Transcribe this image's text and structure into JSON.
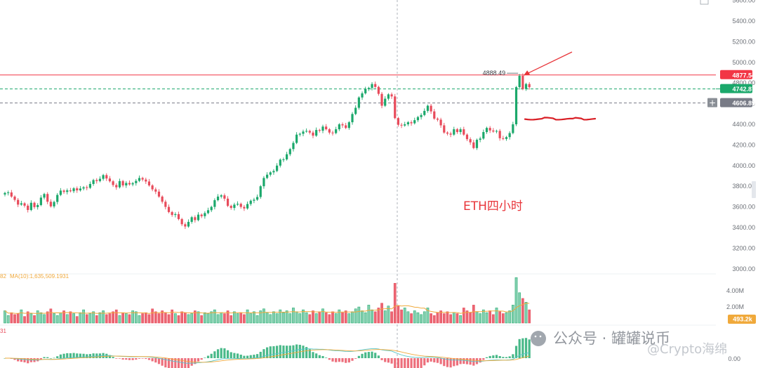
{
  "chart_data": {
    "type": "candlestick",
    "title": "ETH四小时",
    "y_axis": {
      "ticks": [
        "5600.00",
        "5400.00",
        "5200.00",
        "5000.00",
        "4800.00",
        "4600.00",
        "4400.00",
        "4200.00",
        "4000.00",
        "3800.00",
        "3600.00",
        "3400.00",
        "3200.00",
        "3000.00"
      ],
      "range": [
        2900,
        5650
      ]
    },
    "price_levels": [
      {
        "label": "4877.54",
        "value": 4877.54,
        "color": "#f23645",
        "style": "solid"
      },
      {
        "label": "4742.87",
        "value": 4742.87,
        "color": "#1ba86b",
        "style": "dashed"
      },
      {
        "label": "4606.89",
        "value": 4606.89,
        "color": "#787b86",
        "style": "dashed"
      }
    ],
    "high_marker": {
      "label": "4888.49",
      "value": 4888.49
    },
    "marked_support": 4450,
    "price_series": [
      3735,
      3740,
      3700,
      3668,
      3622,
      3635,
      3612,
      3570,
      3640,
      3598,
      3618,
      3690,
      3725,
      3650,
      3605,
      3648,
      3716,
      3758,
      3745,
      3760,
      3752,
      3780,
      3760,
      3778,
      3790,
      3785,
      3822,
      3860,
      3850,
      3872,
      3908,
      3875,
      3848,
      3812,
      3790,
      3850,
      3808,
      3832,
      3818,
      3830,
      3852,
      3880,
      3865,
      3846,
      3808,
      3770,
      3748,
      3700,
      3650,
      3600,
      3550,
      3522,
      3530,
      3482,
      3432,
      3410,
      3455,
      3500,
      3472,
      3525,
      3510,
      3540,
      3568,
      3600,
      3665,
      3700,
      3712,
      3680,
      3610,
      3590,
      3622,
      3630,
      3600,
      3585,
      3628,
      3660,
      3670,
      3696,
      3800,
      3880,
      3912,
      3935,
      3948,
      4000,
      4058,
      4060,
      4110,
      4160,
      4220,
      4300,
      4308,
      4330,
      4336,
      4320,
      4290,
      4345,
      4338,
      4378,
      4352,
      4320,
      4315,
      4352,
      4400,
      4390,
      4365,
      4420,
      4500,
      4560,
      4660,
      4700,
      4740,
      4752,
      4790,
      4762,
      4695,
      4580,
      4648,
      4690,
      4670,
      4460,
      4395,
      4388,
      4400,
      4420,
      4410,
      4440,
      4470,
      4490,
      4530,
      4580,
      4525,
      4455,
      4445,
      4390,
      4320,
      4310,
      4300,
      4352,
      4325,
      4352,
      4300,
      4256,
      4225,
      4170,
      4250,
      4262,
      4325,
      4365,
      4340,
      4330,
      4336,
      4265,
      4258,
      4276,
      4315,
      4400,
      4760,
      4870,
      4742,
      4790,
      4760
    ],
    "ma_label": "MA(10):1,635,509.1931",
    "volume_axis_ticks": [
      "4.00M",
      "2.00M"
    ],
    "volume_current": "493.2k",
    "volume_series": [
      1.3,
      0.8,
      1.1,
      0.9,
      1.0,
      1.4,
      0.7,
      1.2,
      1.0,
      0.8,
      1.3,
      1.1,
      0.9,
      1.2,
      1.5,
      1.0,
      0.8,
      1.1,
      1.3,
      0.9,
      1.2,
      1.0,
      0.7,
      1.1,
      1.4,
      0.9,
      1.0,
      1.2,
      0.8,
      1.1,
      1.3,
      0.9,
      1.0,
      1.2,
      1.4,
      0.8,
      1.1,
      1.0,
      0.9,
      1.3,
      1.2,
      0.8,
      1.0,
      1.1,
      0.9,
      1.5,
      1.2,
      1.0,
      1.3,
      1.1,
      0.9,
      1.4,
      1.0,
      0.8,
      1.2,
      1.1,
      0.9,
      1.0,
      1.3,
      1.2,
      0.8,
      1.1,
      1.0,
      1.2,
      1.4,
      0.9,
      1.1,
      1.0,
      1.3,
      0.8,
      1.2,
      1.0,
      1.1,
      0.9,
      1.4,
      1.0,
      1.2,
      0.8,
      1.3,
      1.5,
      1.1,
      0.9,
      1.2,
      1.0,
      1.4,
      1.1,
      1.3,
      1.0,
      1.6,
      1.2,
      1.0,
      1.4,
      1.1,
      0.9,
      1.3,
      1.0,
      1.2,
      1.5,
      1.1,
      0.9,
      1.2,
      1.0,
      1.4,
      1.1,
      1.3,
      1.0,
      1.2,
      1.5,
      1.7,
      1.3,
      1.1,
      1.9,
      1.4,
      1.2,
      1.6,
      2.1,
      1.3,
      1.8,
      1.2,
      4.2,
      1.8,
      1.4,
      1.6,
      1.2,
      1.0,
      1.3,
      1.1,
      0.9,
      1.2,
      1.6,
      1.0,
      0.8,
      1.1,
      1.3,
      1.0,
      1.2,
      0.9,
      1.1,
      1.0,
      0.8,
      1.6,
      1.3,
      1.1,
      1.9,
      1.2,
      1.0,
      1.4,
      1.1,
      1.3,
      0.9,
      1.6,
      1.2,
      1.0,
      1.1,
      1.3,
      1.9,
      4.8,
      3.2,
      2.6,
      2.2,
      1.4
    ],
    "macd_label": "31",
    "macd_axis_ticks": [
      "0.00"
    ]
  },
  "watermark": {
    "text": "公众号 · 罐罐说币",
    "subtext": "@Crypto海绵"
  },
  "colors": {
    "up": "#1ba86b",
    "down": "#e84b5b",
    "ma": "#f0a93b",
    "dif": "#55c6c8",
    "dea": "#f0a93b",
    "arrow": "#e8353a",
    "support": "#d91f26",
    "annotation": "#e8353a"
  },
  "ui": {
    "corner_icon": "expand-icon",
    "plus_icon": "plus-icon"
  }
}
